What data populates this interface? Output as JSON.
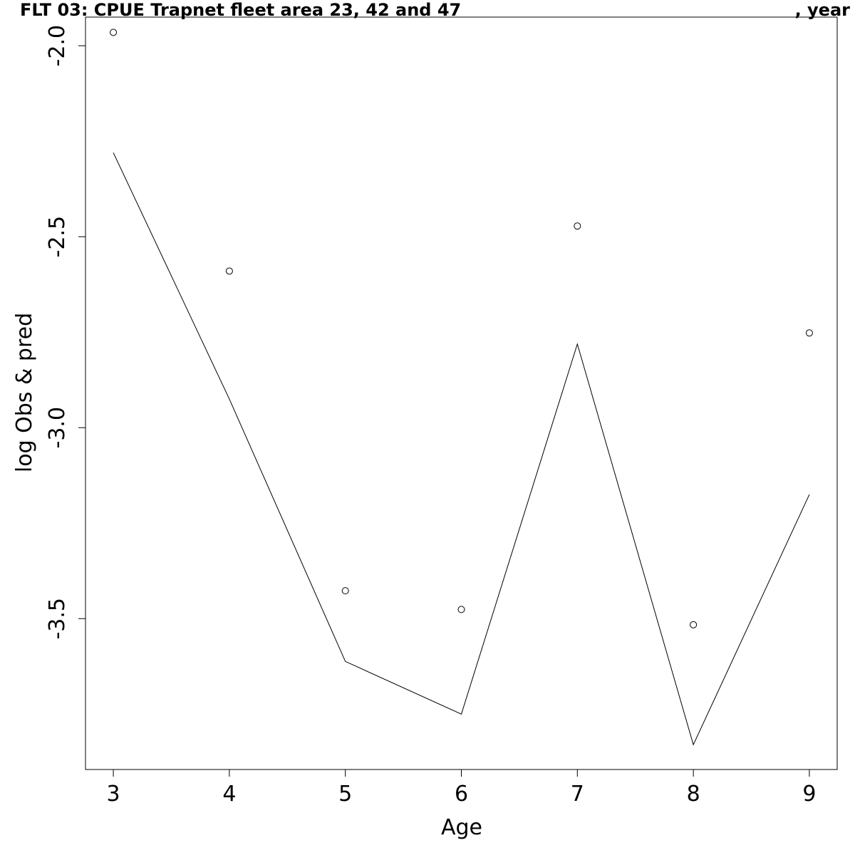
{
  "chart_data": {
    "type": "line",
    "title_left": "FLT 03: CPUE Trapnet fleet area 23, 42 and 47",
    "title_right": ", year",
    "xlabel": "Age",
    "ylabel": "log Obs & pred",
    "xlim": [
      2.76,
      9.24
    ],
    "ylim": [
      -3.895,
      -1.925
    ],
    "x_ticks": [
      3,
      4,
      5,
      6,
      7,
      8,
      9
    ],
    "x_tick_labels": [
      "3",
      "4",
      "5",
      "6",
      "7",
      "8",
      "9"
    ],
    "y_ticks": [
      -2.0,
      -2.5,
      -3.0,
      -3.5
    ],
    "y_tick_labels": [
      "-2.0",
      "-2.5",
      "-3.0",
      "-3.5"
    ],
    "grid": false,
    "series": [
      {
        "kind": "points",
        "marker": "open-circle",
        "x": [
          3,
          4,
          5,
          6,
          7,
          8,
          9
        ],
        "y": [
          -1.965,
          -2.59,
          -3.427,
          -3.476,
          -2.472,
          -3.516,
          -2.752
        ]
      },
      {
        "kind": "line",
        "x": [
          3,
          4,
          5,
          6,
          7,
          8,
          9
        ],
        "y": [
          -2.28,
          -2.925,
          -3.612,
          -3.75,
          -2.781,
          -3.83,
          -3.175
        ]
      }
    ],
    "colors": {
      "line": "#000000",
      "points": "#000000",
      "axes": "#000000"
    }
  }
}
